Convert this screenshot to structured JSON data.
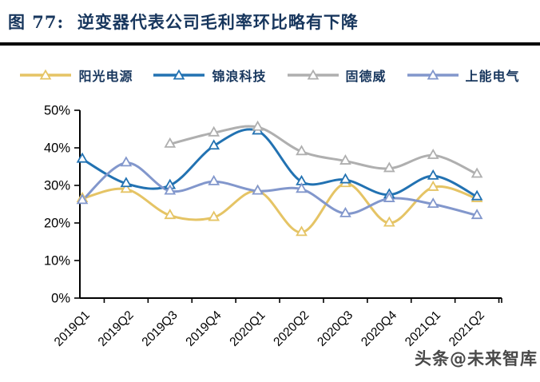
{
  "title": "图 77:  逆变器代表公司毛利率环比略有下降",
  "watermark": "头条@未来智库",
  "chart_data": {
    "type": "line",
    "title": "逆变器代表公司毛利率环比略有下降",
    "categories": [
      "2019Q1",
      "2019Q2",
      "2019Q3",
      "2019Q4",
      "2020Q1",
      "2020Q2",
      "2020Q3",
      "2020Q4",
      "2021Q1",
      "2021Q2"
    ],
    "series": [
      {
        "name": "阳光电源",
        "color": "#E5C465",
        "values": [
          26.5,
          29,
          22,
          21.5,
          28.5,
          17.5,
          30.5,
          20,
          29.5,
          26.5
        ]
      },
      {
        "name": "锦浪科技",
        "color": "#2272B2",
        "values": [
          37,
          30.5,
          30,
          40.5,
          44.5,
          31,
          31.5,
          27.5,
          32.5,
          27
        ]
      },
      {
        "name": "固德威",
        "color": "#AFAFAF",
        "values": [
          null,
          null,
          41,
          44,
          45.5,
          39,
          36.5,
          34.5,
          38,
          33
        ]
      },
      {
        "name": "上能电气",
        "color": "#8297CC",
        "values": [
          26,
          36,
          28.5,
          31,
          28.5,
          29,
          22.5,
          26.5,
          25,
          22
        ]
      }
    ],
    "xlabel": "",
    "ylabel": "",
    "y_ticks": [
      "0%",
      "10%",
      "20%",
      "30%",
      "40%",
      "50%"
    ],
    "ylim": [
      0,
      50
    ],
    "y_tick_step": 10,
    "grid": false,
    "legend_position": "top",
    "marker": "triangle-open",
    "axis_color": "#000000",
    "tick_label_color": "#000000"
  }
}
